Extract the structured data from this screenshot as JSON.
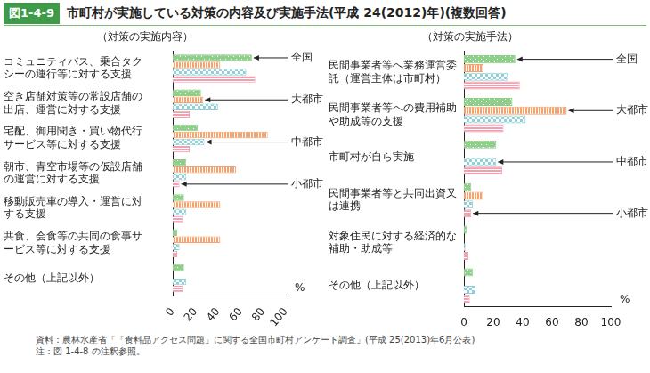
{
  "figure_number": "図1-4-9",
  "title": "市町村が実施している対策の内容及び実施手法(平成 24(2012)年)(複数回答)",
  "source": "資料：農林水産省「「食料品アクセス問題」に関する全国市町村アンケート調査」(平成 25(2013)年6月公表)",
  "note": "注：図 1-4-8 の注釈参照。",
  "chart_data": [
    {
      "type": "bar",
      "title": "（対策の実施内容）",
      "orientation": "horizontal",
      "categories": [
        "コミュニティバス、乗合タクシーの運行等に対する支援",
        "空き店舗対策等の常設店舗の出店、運営に対する支援",
        "宅配、御用聞き・買い物代行サービス等に対する支援",
        "朝市、青空市場等の仮設店舗の運営に対する支援",
        "移動販売車の導入・運営に対する支援",
        "共食、会食等の共同の食事サービス等に対する支援",
        "その他（上記以外）"
      ],
      "series": [
        {
          "name": "全国",
          "color": "#8fcf8a",
          "values": [
            70,
            25,
            22,
            12,
            10,
            4,
            10
          ]
        },
        {
          "name": "大都市",
          "color": "#f5a26e",
          "values": [
            42,
            27,
            84,
            56,
            42,
            42,
            0
          ]
        },
        {
          "name": "中都市",
          "color": "#8fd0d8",
          "values": [
            65,
            40,
            28,
            12,
            12,
            6,
            12
          ]
        },
        {
          "name": "小都市",
          "color": "#f2a0b0",
          "values": [
            73,
            15,
            15,
            6,
            9,
            4,
            9
          ]
        }
      ],
      "xlim": [
        0,
        100
      ],
      "xticks": [
        0,
        20,
        40,
        60,
        80,
        100
      ],
      "x_label": "%",
      "grid": false,
      "legend": "right"
    },
    {
      "type": "bar",
      "title": "（対策の実施手法）",
      "orientation": "horizontal",
      "categories": [
        "民間事業者等へ業務運営委託（運営主体は市町村）",
        "民間事業者等への費用補助や助成等の支援",
        "市町村が自ら実施",
        "民間事業者等と共同出資又は連携",
        "対象住民に対する経済的な補助・助成等",
        "その他（上記以外）"
      ],
      "series": [
        {
          "name": "全国",
          "color": "#8fcf8a",
          "values": [
            35,
            33,
            22,
            5,
            2,
            6
          ]
        },
        {
          "name": "大都市",
          "color": "#f5a26e",
          "values": [
            13,
            70,
            0,
            13,
            0,
            0
          ]
        },
        {
          "name": "中都市",
          "color": "#8fd0d8",
          "values": [
            30,
            42,
            22,
            6,
            1,
            8
          ]
        },
        {
          "name": "小都市",
          "color": "#f2a0b0",
          "values": [
            38,
            27,
            26,
            5,
            3,
            4
          ]
        }
      ],
      "xlim": [
        0,
        100
      ],
      "xticks": [
        0,
        20,
        40,
        60,
        80,
        100
      ],
      "x_label": "%",
      "grid": false,
      "legend": "right"
    }
  ]
}
